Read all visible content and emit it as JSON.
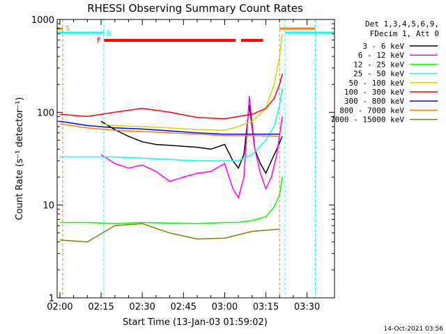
{
  "chart_data": {
    "type": "line",
    "title": "RHESSI Observing Summary Count Rates",
    "xlabel": "Start Time (13-Jan-03 01:59:02)",
    "ylabel": "Count Rate (s⁻¹ detector⁻¹)",
    "y_scale": "log",
    "ylim": [
      1,
      1000
    ],
    "xlim": [
      "01:59",
      "03:40"
    ],
    "x_ticks": [
      "02:00",
      "02:15",
      "02:30",
      "02:45",
      "03:00",
      "03:15",
      "03:30"
    ],
    "y_ticks": [
      "1",
      "10",
      "100",
      "1000"
    ],
    "legend_placement": "right",
    "legend_header": [
      "Det 1,3,4,5,6,9,",
      "FDecim 1, Att 0"
    ],
    "timestamp": "14-Oct-2021 03:56",
    "flag_labels": {
      "saa": "S",
      "night": "N",
      "flare": "F"
    },
    "flag_segments": {
      "saa": [
        [
          "01:59",
          "02:01"
        ],
        [
          "03:20",
          "03:33"
        ]
      ],
      "night": [
        [
          "01:59",
          "02:16"
        ],
        [
          "03:22",
          "03:40"
        ]
      ],
      "flare": [
        [
          "02:16",
          "03:04"
        ],
        [
          "03:06",
          "03:14"
        ]
      ]
    },
    "series": [
      {
        "name": "3 - 6 keV",
        "color": "#000000",
        "x": [
          "02:15",
          "02:20",
          "02:25",
          "02:30",
          "02:35",
          "02:40",
          "02:45",
          "02:50",
          "02:55",
          "03:00",
          "03:03",
          "03:05",
          "03:07",
          "03:09",
          "03:11",
          "03:13",
          "03:15",
          "03:17",
          "03:19",
          "03:21"
        ],
        "y": [
          80,
          65,
          55,
          48,
          45,
          44,
          43,
          42,
          40,
          45,
          30,
          25,
          35,
          120,
          40,
          28,
          22,
          30,
          40,
          55
        ]
      },
      {
        "name": "6 - 12 keV",
        "color": "#ff00ff",
        "x": [
          "02:15",
          "02:20",
          "02:25",
          "02:30",
          "02:35",
          "02:40",
          "02:45",
          "02:50",
          "02:55",
          "03:00",
          "03:03",
          "03:05",
          "03:07",
          "03:09",
          "03:11",
          "03:13",
          "03:15",
          "03:17",
          "03:19",
          "03:21"
        ],
        "y": [
          35,
          28,
          25,
          27,
          23,
          18,
          20,
          22,
          23,
          28,
          15,
          12,
          20,
          150,
          40,
          22,
          15,
          20,
          35,
          90
        ]
      },
      {
        "name": "12 - 25 keV",
        "color": "#00ff00",
        "x": [
          "02:00",
          "02:10",
          "02:20",
          "02:30",
          "02:40",
          "02:50",
          "03:00",
          "03:05",
          "03:10",
          "03:15",
          "03:18",
          "03:20",
          "03:21"
        ],
        "y": [
          6.5,
          6.5,
          6.3,
          6.5,
          6.4,
          6.3,
          6.5,
          6.5,
          6.8,
          7.5,
          9.5,
          13,
          20
        ]
      },
      {
        "name": "25 - 50 keV",
        "color": "#00ffff",
        "x": [
          "02:00",
          "02:10",
          "02:20",
          "02:30",
          "02:40",
          "02:50",
          "03:00",
          "03:05",
          "03:10",
          "03:15",
          "03:18",
          "03:20",
          "03:21"
        ],
        "y": [
          33,
          33,
          33,
          32,
          31,
          30,
          30,
          30,
          35,
          50,
          70,
          120,
          180
        ]
      },
      {
        "name": "50 - 100 keV",
        "color": "#d4d400",
        "x": [
          "02:15",
          "02:20",
          "02:30",
          "02:40",
          "02:50",
          "03:00",
          "03:05",
          "03:10",
          "03:15",
          "03:18",
          "03:20",
          "03:21"
        ],
        "y": [
          75,
          72,
          70,
          68,
          65,
          64,
          70,
          80,
          110,
          200,
          400,
          700
        ]
      },
      {
        "name": "100 - 300 keV",
        "color": "#ff0000",
        "x": [
          "02:00",
          "02:10",
          "02:20",
          "02:30",
          "02:40",
          "02:50",
          "03:00",
          "03:05",
          "03:10",
          "03:15",
          "03:18",
          "03:20",
          "03:21"
        ],
        "y": [
          95,
          90,
          100,
          110,
          100,
          88,
          85,
          90,
          95,
          110,
          140,
          200,
          260
        ]
      },
      {
        "name": "300 - 800 keV",
        "color": "#0000ff",
        "x": [
          "02:00",
          "02:10",
          "02:20",
          "02:30",
          "02:40",
          "02:50",
          "03:00",
          "03:10",
          "03:20"
        ],
        "y": [
          80,
          72,
          68,
          66,
          63,
          60,
          58,
          58,
          58
        ]
      },
      {
        "name": "800 - 7000 keV",
        "color": "#ff8000",
        "x": [
          "02:00",
          "02:10",
          "02:20",
          "02:30",
          "02:40",
          "02:50",
          "03:00",
          "03:10",
          "03:20"
        ],
        "y": [
          75,
          68,
          64,
          62,
          60,
          58,
          56,
          56,
          55
        ]
      },
      {
        "name": "7000 - 15000 keV",
        "color": "#808000",
        "x": [
          "02:00",
          "02:10",
          "02:20",
          "02:30",
          "02:40",
          "02:50",
          "03:00",
          "03:10",
          "03:20"
        ],
        "y": [
          4.2,
          4.0,
          6.0,
          6.3,
          5.0,
          4.3,
          4.4,
          5.2,
          5.5
        ]
      }
    ]
  }
}
